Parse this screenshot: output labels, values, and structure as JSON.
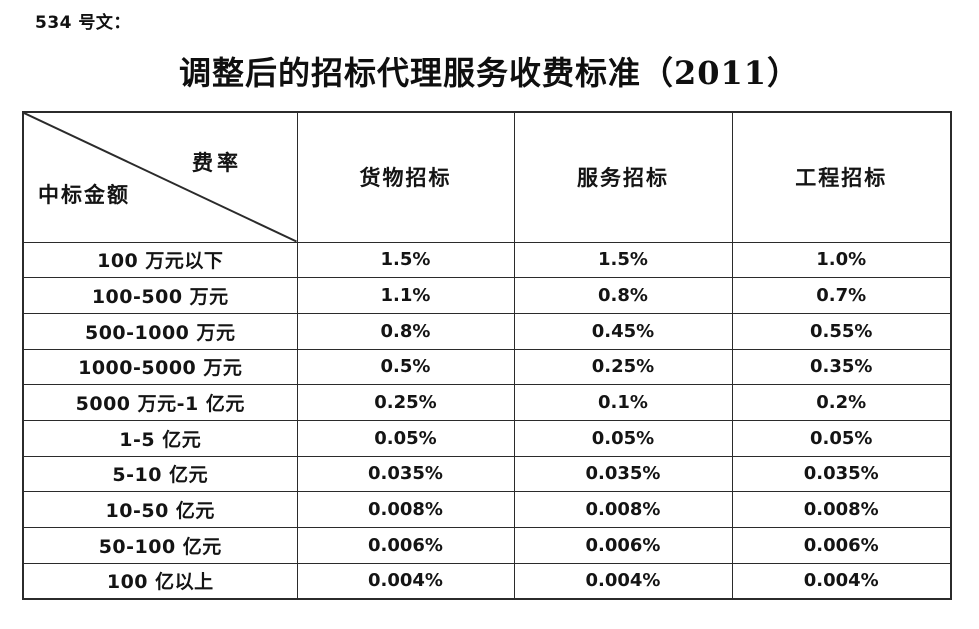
{
  "doc_label": "534 号文：",
  "title": "调整后的招标代理服务收费标准（2011）",
  "colors": {
    "background": "#ffffff",
    "text": "#111111",
    "border": "#2b2b2b"
  },
  "table": {
    "corner": {
      "top_right": "费率",
      "bottom_left": "中标金额"
    },
    "columns": [
      "货物招标",
      "服务招标",
      "工程招标"
    ],
    "rows": [
      {
        "label": "100 万元以下",
        "values": [
          "1.5%",
          "1.5%",
          "1.0%"
        ]
      },
      {
        "label": "100-500 万元",
        "values": [
          "1.1%",
          "0.8%",
          "0.7%"
        ]
      },
      {
        "label": "500-1000 万元",
        "values": [
          "0.8%",
          "0.45%",
          "0.55%"
        ]
      },
      {
        "label": "1000-5000 万元",
        "values": [
          "0.5%",
          "0.25%",
          "0.35%"
        ]
      },
      {
        "label": "5000 万元-1 亿元",
        "values": [
          "0.25%",
          "0.1%",
          "0.2%"
        ]
      },
      {
        "label": "1-5 亿元",
        "values": [
          "0.05%",
          "0.05%",
          "0.05%"
        ]
      },
      {
        "label": "5-10 亿元",
        "values": [
          "0.035%",
          "0.035%",
          "0.035%"
        ]
      },
      {
        "label": "10-50 亿元",
        "values": [
          "0.008%",
          "0.008%",
          "0.008%"
        ]
      },
      {
        "label": "50-100 亿元",
        "values": [
          "0.006%",
          "0.006%",
          "0.006%"
        ]
      },
      {
        "label": "100 亿以上",
        "values": [
          "0.004%",
          "0.004%",
          "0.004%"
        ]
      }
    ]
  }
}
